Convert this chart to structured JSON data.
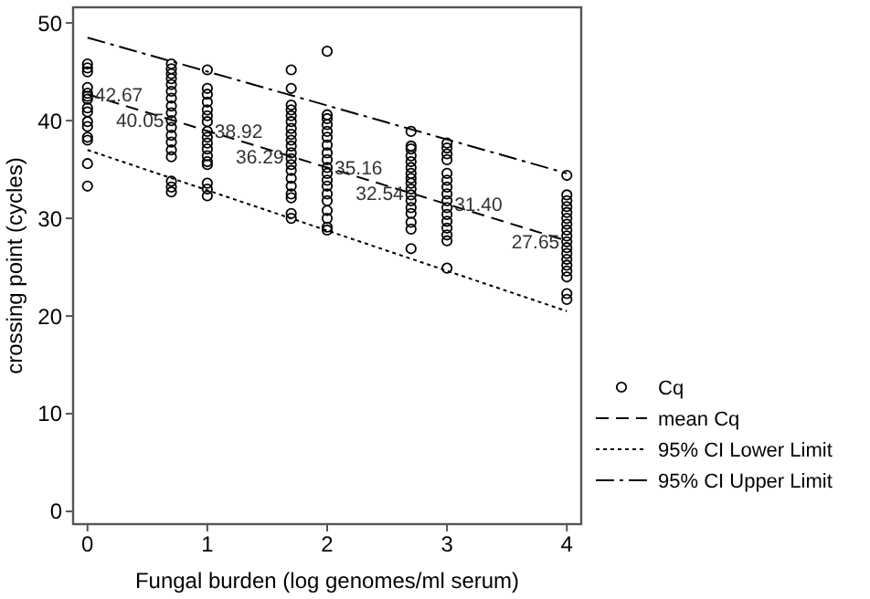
{
  "chart_data": {
    "type": "scatter",
    "xlabel": "Fungal burden (log genomes/ml serum)",
    "ylabel": "crossing point (cycles)",
    "xlim": [
      -0.12,
      4.12
    ],
    "ylim": [
      -1.3,
      51.6
    ],
    "xticks": [
      0,
      1,
      2,
      3,
      4
    ],
    "yticks": [
      0,
      10,
      20,
      30,
      40,
      50
    ],
    "grid": false,
    "legend": "right",
    "series": [
      {
        "name": "Cq",
        "color": "#000000",
        "marker": "circle",
        "x": [
          0,
          0,
          0,
          0,
          0,
          0,
          0,
          0,
          0,
          0,
          0,
          0,
          0,
          0,
          0,
          0.7,
          0.7,
          0.7,
          0.7,
          0.7,
          0.7,
          0.7,
          0.7,
          0.7,
          0.7,
          0.7,
          0.7,
          0.7,
          0.7,
          0.7,
          0.7,
          0.7,
          0.7,
          1,
          1,
          1,
          1,
          1,
          1,
          1,
          1,
          1,
          1,
          1,
          1,
          1,
          1,
          1,
          1,
          1,
          1.7,
          1.7,
          1.7,
          1.7,
          1.7,
          1.7,
          1.7,
          1.7,
          1.7,
          1.7,
          1.7,
          1.7,
          1.7,
          1.7,
          1.7,
          1.7,
          1.7,
          1.7,
          1.7,
          1.7,
          2,
          2,
          2,
          2,
          2,
          2,
          2,
          2,
          2,
          2,
          2,
          2,
          2,
          2,
          2,
          2,
          2,
          2,
          2,
          2.7,
          2.7,
          2.7,
          2.7,
          2.7,
          2.7,
          2.7,
          2.7,
          2.7,
          2.7,
          2.7,
          2.7,
          2.7,
          2.7,
          2.7,
          2.7,
          2.7,
          3,
          3,
          3,
          3,
          3,
          3,
          3,
          3,
          3,
          3,
          3,
          3,
          3,
          3,
          3,
          3,
          4,
          4,
          4,
          4,
          4,
          4,
          4,
          4,
          4,
          4,
          4,
          4,
          4,
          4,
          4,
          4,
          4,
          4
        ],
        "values": [
          45.8,
          45.4,
          45,
          43.4,
          42.8,
          42.5,
          42.2,
          41.3,
          40.9,
          39.9,
          39.4,
          38.3,
          38,
          35.6,
          33.3,
          45.8,
          45.3,
          44.8,
          44.3,
          43.7,
          43,
          42.3,
          41.5,
          40.8,
          40,
          39.3,
          38.5,
          37.8,
          37,
          36.3,
          33.8,
          33.2,
          32.7,
          45.2,
          43.3,
          42.7,
          41.9,
          41.1,
          40.5,
          39.9,
          38.9,
          38.3,
          37.7,
          37.1,
          36.4,
          35.8,
          35.5,
          33.6,
          33,
          32.3,
          45.2,
          43.3,
          41.6,
          41.1,
          40.5,
          39.9,
          39.2,
          38.6,
          38,
          37.4,
          36.7,
          36.1,
          35.5,
          34.9,
          34.1,
          33.3,
          32.5,
          32.1,
          30.5,
          30,
          47.1,
          40.6,
          40.2,
          39.6,
          38.9,
          38.3,
          37.5,
          36.7,
          36,
          35.2,
          34.6,
          33.9,
          33.3,
          32.5,
          31.8,
          30.8,
          30,
          29.1,
          28.8,
          38.9,
          37.4,
          37.1,
          36.4,
          35.8,
          35.2,
          34.6,
          34.1,
          33.6,
          33,
          32.4,
          31.8,
          31.1,
          30.5,
          29.6,
          28.9,
          26.9,
          37.7,
          37.2,
          36.6,
          36,
          34.6,
          33.9,
          33.2,
          32.5,
          31.8,
          31.1,
          30.4,
          29.7,
          29,
          28.3,
          27.7,
          24.9,
          34.4,
          32.4,
          31.8,
          31.2,
          30.6,
          30,
          29.4,
          28.8,
          28.2,
          27.6,
          27,
          26.4,
          25.8,
          25.2,
          24.6,
          24,
          22.3,
          21.7
        ]
      },
      {
        "name": "mean Cq",
        "type": "line",
        "color": "#000000",
        "line_style": "dashed",
        "x": [
          0,
          4
        ],
        "values": [
          42.7,
          27.7
        ]
      },
      {
        "name": "95% CI Lower Limit",
        "type": "line",
        "color": "#000000",
        "line_style": "dotted",
        "x": [
          0,
          4
        ],
        "values": [
          37,
          20.5
        ]
      },
      {
        "name": "95% CI Upper Limit",
        "type": "line",
        "color": "#000000",
        "line_style": "dashdot",
        "x": [
          0,
          4
        ],
        "values": [
          48.5,
          34.6
        ]
      }
    ],
    "annotations": [
      {
        "text": "42.67",
        "x": 0,
        "y": 42.67
      },
      {
        "text": "40.05",
        "x": 0.7,
        "y": 40.05
      },
      {
        "text": "38.92",
        "x": 1,
        "y": 38.92
      },
      {
        "text": "36.29",
        "x": 1.7,
        "y": 36.29
      },
      {
        "text": "35.16",
        "x": 2,
        "y": 35.16
      },
      {
        "text": "32.54",
        "x": 2.7,
        "y": 32.54
      },
      {
        "text": "31.40",
        "x": 3,
        "y": 31.4
      },
      {
        "text": "27.65",
        "x": 4,
        "y": 27.65
      }
    ]
  }
}
